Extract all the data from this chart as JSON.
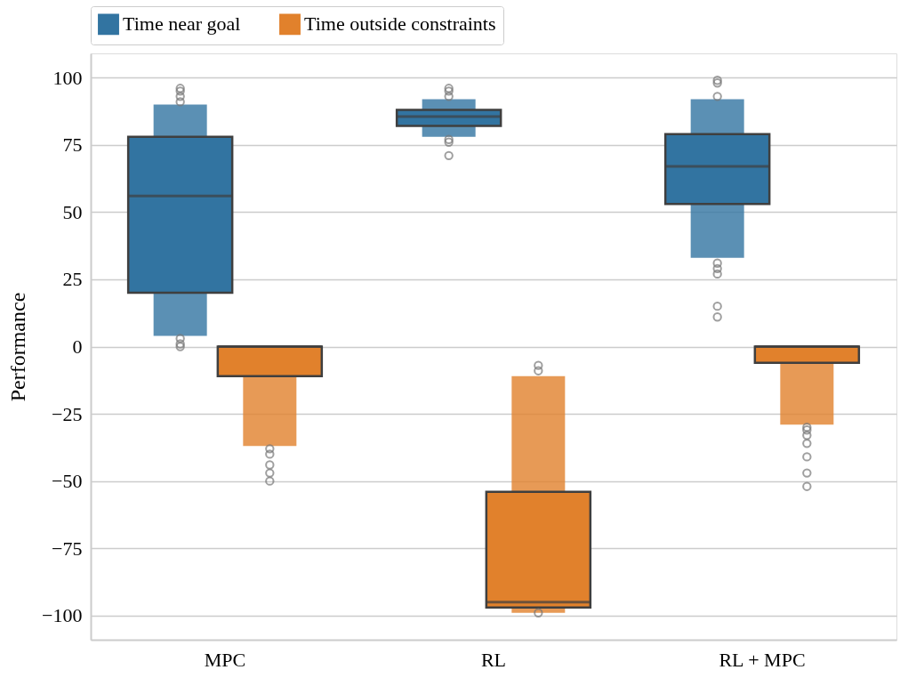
{
  "chart_data": {
    "type": "box",
    "ylabel": "Performance",
    "categories": [
      "MPC",
      "RL",
      "RL + MPC"
    ],
    "ylim": [
      -109,
      109
    ],
    "yticks": [
      -100,
      -75,
      -50,
      -25,
      0,
      25,
      50,
      75,
      100
    ],
    "grid": "y",
    "legend": "top",
    "series": [
      {
        "name": "Time near goal",
        "color": "#3274a1",
        "boxes": [
          {
            "low": 4,
            "q1": 20,
            "median": 56,
            "q3": 78,
            "high": 90,
            "outliers": [
              96,
              95,
              93,
              91,
              3,
              1,
              0
            ]
          },
          {
            "low": 78,
            "q1": 82,
            "median": 85.5,
            "q3": 88,
            "high": 92,
            "outliers": [
              96,
              95,
              93,
              77,
              76,
              71
            ]
          },
          {
            "low": 33,
            "q1": 53,
            "median": 67,
            "q3": 79,
            "high": 92,
            "outliers": [
              99,
              98,
              93,
              31,
              29,
              27,
              15,
              11
            ]
          }
        ]
      },
      {
        "name": "Time outside constraints",
        "color": "#e1812c",
        "boxes": [
          {
            "low": -37,
            "q1": -11,
            "median": 0,
            "q3": 0,
            "high": 0,
            "outliers": [
              -38,
              -40,
              -44,
              -47,
              -50
            ]
          },
          {
            "low": -99,
            "q1": -97,
            "median": -95,
            "q3": -54,
            "high": -11,
            "outliers": [
              -7,
              -9,
              -99
            ]
          },
          {
            "low": -29,
            "q1": -6,
            "median": 0,
            "q3": 0,
            "high": 0,
            "outliers": [
              -30,
              -31,
              -33,
              -36,
              -41,
              -47,
              -52
            ]
          }
        ]
      }
    ]
  }
}
